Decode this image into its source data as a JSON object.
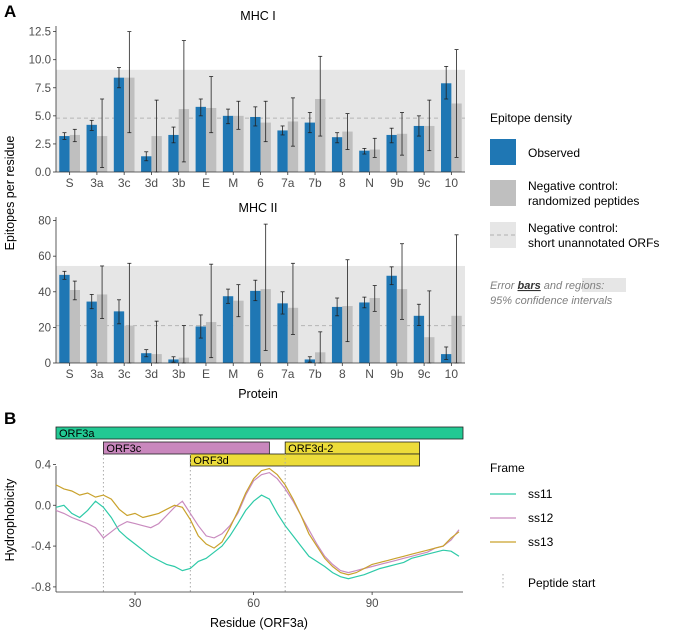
{
  "figure": {
    "panel_a_letter": "A",
    "panel_b_letter": "B",
    "y_axis_label_a": "Epitopes per residue",
    "x_axis_label_a": "Protein",
    "legend_a": {
      "title": "Epitope density",
      "observed": "Observed",
      "randomized_line1": "Negative control:",
      "randomized_line2": "randomized peptides",
      "orfs_line1": "Negative control:",
      "orfs_line2": "short unannotated ORFs",
      "note_line1_a": "Error ",
      "note_bars": "bars",
      "note_line1_b": " and ",
      "note_regions": "regions",
      "note_line1_c": ":",
      "note_line2": "95% confidence intervals"
    },
    "legend_b": {
      "title": "Frame",
      "ss11": "ss11",
      "ss12": "ss12",
      "ss13": "ss13",
      "peptide": "Peptide start"
    },
    "colors": {
      "observed": "#1f77b4",
      "randomized": "#bfbfbf",
      "region": "#e6e6e6",
      "ss11": "#2ecaa8",
      "ss12": "#c98bbf",
      "ss13": "#c9a22c",
      "orf3a": "#22c993",
      "orf3c": "#c987bd",
      "orf3d": "#ecdc3a"
    }
  },
  "chart_data": [
    {
      "type": "bar",
      "title": "MHC I",
      "categories": [
        "S",
        "3a",
        "3c",
        "3d",
        "3b",
        "E",
        "M",
        "6",
        "7a",
        "7b",
        "8",
        "N",
        "9b",
        "9c",
        "10"
      ],
      "ylim": [
        0,
        13.0
      ],
      "yticks": [
        "0.0",
        "2.5",
        "5.0",
        "7.5",
        "10.0",
        "12.5"
      ],
      "ytick_values": [
        0,
        2.5,
        5,
        7.5,
        10,
        12.5
      ],
      "orf_region": {
        "low": 0,
        "high": 9.1,
        "median": 4.8
      },
      "series": [
        {
          "name": "Observed",
          "values": [
            3.2,
            4.2,
            8.4,
            1.4,
            3.3,
            5.8,
            5.0,
            4.9,
            3.7,
            4.4,
            3.1,
            1.9,
            3.3,
            4.1,
            7.9
          ],
          "err_low": [
            2.9,
            3.7,
            7.5,
            1.0,
            2.6,
            5.0,
            4.3,
            4.1,
            3.3,
            3.5,
            2.6,
            1.6,
            2.6,
            3.2,
            6.5
          ],
          "err_high": [
            3.5,
            4.6,
            9.3,
            1.8,
            4.0,
            6.5,
            5.6,
            5.8,
            4.1,
            5.3,
            3.5,
            2.1,
            3.9,
            5.0,
            9.4
          ]
        },
        {
          "name": "Negative control: randomized peptides",
          "values": [
            3.3,
            3.2,
            8.4,
            3.2,
            5.6,
            5.7,
            5.0,
            4.4,
            4.5,
            6.5,
            3.6,
            2.0,
            3.4,
            4.1,
            6.1
          ],
          "err_low": [
            2.7,
            0.4,
            3.5,
            0.0,
            0.9,
            3.5,
            3.8,
            2.7,
            2.3,
            3.2,
            2.0,
            1.3,
            1.5,
            1.9,
            1.3
          ],
          "err_high": [
            3.8,
            6.5,
            12.5,
            6.4,
            11.7,
            8.5,
            6.3,
            6.3,
            6.6,
            10.3,
            5.2,
            3.0,
            5.3,
            6.4,
            10.9
          ]
        }
      ]
    },
    {
      "type": "bar",
      "title": "MHC II",
      "categories": [
        "S",
        "3a",
        "3c",
        "3d",
        "3b",
        "E",
        "M",
        "6",
        "7a",
        "7b",
        "8",
        "N",
        "9b",
        "9c",
        "10"
      ],
      "xlabel": "Protein",
      "ylim": [
        0,
        82
      ],
      "yticks": [
        "0",
        "20",
        "40",
        "60",
        "80"
      ],
      "ytick_values": [
        0,
        20,
        40,
        60,
        80
      ],
      "orf_region": {
        "low": 0,
        "high": 54.5,
        "median": 21
      },
      "series": [
        {
          "name": "Observed",
          "values": [
            49.5,
            34.5,
            29,
            5.5,
            2,
            20.5,
            37.5,
            40.5,
            33.5,
            2,
            31.5,
            34,
            49,
            26.5,
            5
          ],
          "err_low": [
            47,
            30.5,
            22,
            3.5,
            0.5,
            14,
            33.5,
            35,
            27.5,
            0.5,
            26.5,
            31,
            44,
            21,
            2
          ],
          "err_high": [
            51.5,
            38.5,
            35.5,
            7.5,
            3.5,
            27,
            41.5,
            46.5,
            40,
            3.5,
            36.5,
            37,
            54,
            33,
            9
          ]
        },
        {
          "name": "Negative control: randomized peptides",
          "values": [
            41,
            38.5,
            21,
            5,
            3,
            23,
            35,
            41.5,
            31,
            6,
            32,
            36.5,
            41.5,
            14.5,
            26.5
          ],
          "err_low": [
            35.5,
            25,
            0,
            0,
            0,
            3,
            26,
            7,
            16,
            0,
            12,
            29,
            24.5,
            0,
            0
          ],
          "err_high": [
            46,
            54.5,
            56,
            23.5,
            21,
            55.5,
            44,
            78,
            56,
            17.5,
            58,
            43.5,
            67,
            40.5,
            72
          ]
        }
      ]
    },
    {
      "type": "line",
      "xlabel": "Residue (ORF3a)",
      "ylabel": "Hydrophobicity",
      "xlim": [
        10,
        113
      ],
      "ylim": [
        -0.85,
        0.62
      ],
      "xticks": [
        "30",
        "60",
        "90"
      ],
      "xtick_values": [
        30,
        60,
        90
      ],
      "yticks": [
        "-0.8",
        "-0.4",
        "0.0",
        "0.4"
      ],
      "ytick_values": [
        -0.8,
        -0.4,
        0.0,
        0.4
      ],
      "peptide_starts": [
        22,
        44,
        68
      ],
      "orf_bars": [
        {
          "label": "ORF3a",
          "start": 10,
          "end": 113,
          "row": 0,
          "color_key": "orf3a"
        },
        {
          "label": "ORF3c",
          "start": 22,
          "end": 64,
          "row": 1,
          "color_key": "orf3c"
        },
        {
          "label": "ORF3d-2",
          "start": 68,
          "end": 102,
          "row": 1,
          "color_key": "orf3d"
        },
        {
          "label": "ORF3d",
          "start": 44,
          "end": 102,
          "row": 2,
          "color_key": "orf3d"
        }
      ],
      "series": [
        {
          "name": "ss11",
          "x": [
            10,
            12,
            14,
            16,
            18,
            20,
            22,
            24,
            26,
            28,
            30,
            32,
            34,
            36,
            38,
            40,
            42,
            44,
            46,
            48,
            50,
            52,
            54,
            56,
            58,
            60,
            62,
            64,
            66,
            68,
            70,
            72,
            74,
            76,
            78,
            80,
            82,
            84,
            86,
            88,
            90,
            92,
            94,
            96,
            98,
            100,
            102,
            104,
            106,
            108,
            110,
            112
          ],
          "y": [
            -0.02,
            0.0,
            -0.08,
            -0.12,
            -0.05,
            0.04,
            -0.02,
            -0.12,
            -0.25,
            -0.32,
            -0.38,
            -0.44,
            -0.5,
            -0.54,
            -0.58,
            -0.6,
            -0.64,
            -0.62,
            -0.55,
            -0.52,
            -0.46,
            -0.4,
            -0.3,
            -0.18,
            -0.05,
            0.04,
            0.1,
            0.06,
            -0.08,
            -0.2,
            -0.3,
            -0.4,
            -0.5,
            -0.55,
            -0.6,
            -0.66,
            -0.7,
            -0.72,
            -0.7,
            -0.68,
            -0.65,
            -0.62,
            -0.6,
            -0.58,
            -0.56,
            -0.52,
            -0.5,
            -0.48,
            -0.46,
            -0.44,
            -0.45,
            -0.5
          ]
        },
        {
          "name": "ss12",
          "x": [
            10,
            12,
            14,
            16,
            18,
            20,
            22,
            24,
            26,
            28,
            30,
            32,
            34,
            36,
            38,
            40,
            42,
            44,
            46,
            48,
            50,
            52,
            54,
            56,
            58,
            60,
            62,
            64,
            66,
            68,
            70,
            72,
            74,
            76,
            78,
            80,
            82,
            84,
            86,
            88,
            90,
            92,
            94,
            96,
            98,
            100,
            102,
            104,
            106,
            108,
            110,
            112
          ],
          "y": [
            -0.05,
            -0.08,
            -0.12,
            -0.15,
            -0.18,
            -0.22,
            -0.32,
            -0.26,
            -0.2,
            -0.16,
            -0.18,
            -0.2,
            -0.22,
            -0.18,
            -0.1,
            -0.02,
            0.04,
            -0.08,
            -0.2,
            -0.3,
            -0.32,
            -0.28,
            -0.2,
            -0.08,
            0.1,
            0.24,
            0.3,
            0.32,
            0.26,
            0.16,
            0.04,
            -0.1,
            -0.24,
            -0.38,
            -0.5,
            -0.58,
            -0.64,
            -0.66,
            -0.64,
            -0.62,
            -0.6,
            -0.58,
            -0.56,
            -0.54,
            -0.52,
            -0.5,
            -0.48,
            -0.46,
            -0.42,
            -0.4,
            -0.34,
            -0.24
          ]
        },
        {
          "name": "ss13",
          "x": [
            10,
            12,
            14,
            16,
            18,
            20,
            22,
            24,
            26,
            28,
            30,
            32,
            34,
            36,
            38,
            40,
            42,
            44,
            46,
            48,
            50,
            52,
            54,
            56,
            58,
            60,
            62,
            64,
            66,
            68,
            70,
            72,
            74,
            76,
            78,
            80,
            82,
            84,
            86,
            88,
            90,
            92,
            94,
            96,
            98,
            100,
            102,
            104,
            106,
            108,
            110,
            112
          ],
          "y": [
            0.2,
            0.16,
            0.14,
            0.1,
            0.12,
            0.08,
            0.1,
            0.06,
            -0.04,
            -0.1,
            -0.08,
            -0.12,
            -0.1,
            -0.08,
            -0.04,
            0.0,
            -0.02,
            -0.14,
            -0.3,
            -0.38,
            -0.42,
            -0.36,
            -0.22,
            -0.06,
            0.12,
            0.26,
            0.34,
            0.36,
            0.3,
            0.2,
            0.06,
            -0.1,
            -0.28,
            -0.4,
            -0.52,
            -0.6,
            -0.66,
            -0.68,
            -0.66,
            -0.62,
            -0.58,
            -0.56,
            -0.54,
            -0.52,
            -0.5,
            -0.48,
            -0.46,
            -0.44,
            -0.42,
            -0.4,
            -0.32,
            -0.26
          ]
        }
      ]
    }
  ]
}
